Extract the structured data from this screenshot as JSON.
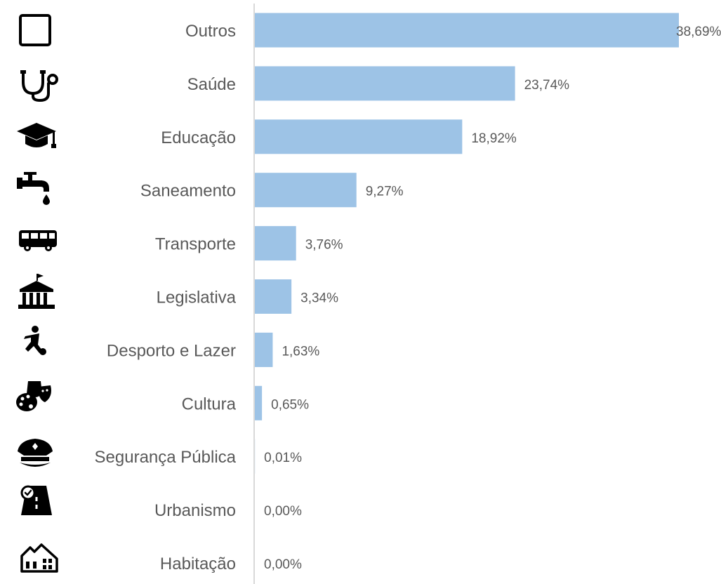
{
  "chart_data": {
    "type": "bar",
    "orientation": "horizontal",
    "categories": [
      "Outros",
      "Saúde",
      "Educação",
      "Saneamento",
      "Transporte",
      "Legislativa",
      "Desporto e Lazer",
      "Cultura",
      "Segurança Pública",
      "Urbanismo",
      "Habitação"
    ],
    "values": [
      38.69,
      23.74,
      18.92,
      9.27,
      3.76,
      3.34,
      1.63,
      0.65,
      0.01,
      0.0,
      0.0
    ],
    "value_labels": [
      "38,69%",
      "23,74%",
      "18,92%",
      "9,27%",
      "3,76%",
      "3,34%",
      "1,63%",
      "0,65%",
      "0,01%",
      "0,00%",
      "0,00%"
    ],
    "icons": [
      "square-outline-icon",
      "stethoscope-icon",
      "graduation-cap-icon",
      "faucet-icon",
      "bus-icon",
      "government-building-icon",
      "soccer-player-icon",
      "theater-masks-palette-icon",
      "police-cap-icon",
      "road-check-icon",
      "houses-icon"
    ],
    "title": "",
    "xlabel": "",
    "ylabel": "",
    "xlim": [
      0,
      38.69
    ],
    "grid": false,
    "legend": "none",
    "bar_color": "#9dc3e6",
    "axis_color": "#d9d9d9",
    "label_color": "#595959"
  }
}
